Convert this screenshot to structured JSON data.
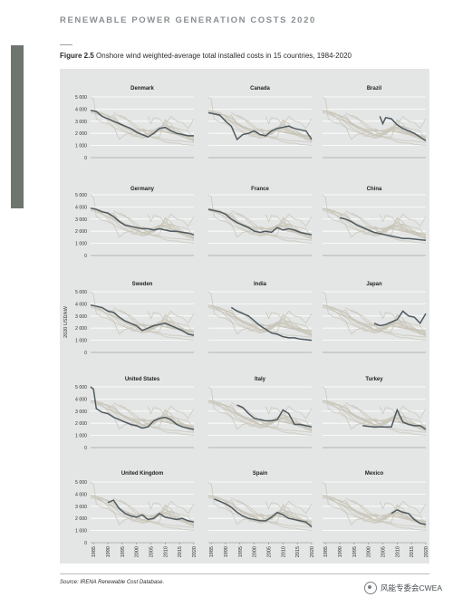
{
  "report": {
    "header": "RENEWABLE POWER GENERATION COSTS 2020"
  },
  "figure": {
    "number": "Figure 2.5",
    "title": "Onshore wind weighted-average total installed costs in 15 countries, 1984-2020"
  },
  "source": "Source: IRENA Renewable Cost Database.",
  "watermark": {
    "text": "风能专委会CWEA",
    "icon": "wechat-icon"
  },
  "colors": {
    "highlight": "#4f5a60",
    "background_lines": "#c9c6b9",
    "panel_bg": "#e4e6e6"
  },
  "chart_data": {
    "type": "line",
    "layout": "small-multiples",
    "ylabel": "2020 USD/kW",
    "ylim": [
      0,
      5000
    ],
    "yticks": [
      0,
      1000,
      2000,
      3000,
      4000,
      5000
    ],
    "ytick_labels": [
      "0",
      "1 000",
      "2 000",
      "3 000",
      "4 000",
      "5 000"
    ],
    "xlim": [
      1984,
      2020
    ],
    "xticks": [
      1985,
      1990,
      1995,
      2000,
      2005,
      2010,
      2015,
      2020
    ],
    "panels": [
      {
        "name": "Denmark",
        "points": [
          [
            1984,
            3900
          ],
          [
            1986,
            3800
          ],
          [
            1988,
            3400
          ],
          [
            1990,
            3200
          ],
          [
            1992,
            3000
          ],
          [
            1994,
            2800
          ],
          [
            1996,
            2600
          ],
          [
            1998,
            2400
          ],
          [
            2000,
            2100
          ],
          [
            2002,
            1900
          ],
          [
            2004,
            1700
          ],
          [
            2006,
            2000
          ],
          [
            2008,
            2400
          ],
          [
            2010,
            2500
          ],
          [
            2012,
            2200
          ],
          [
            2014,
            2000
          ],
          [
            2016,
            1900
          ],
          [
            2018,
            1800
          ],
          [
            2020,
            1800
          ]
        ]
      },
      {
        "name": "Canada",
        "points": [
          [
            1984,
            3700
          ],
          [
            1988,
            3500
          ],
          [
            1990,
            3000
          ],
          [
            1992,
            2600
          ],
          [
            1994,
            1500
          ],
          [
            1996,
            1900
          ],
          [
            1998,
            2000
          ],
          [
            2000,
            2200
          ],
          [
            2002,
            1900
          ],
          [
            2004,
            1800
          ],
          [
            2006,
            2200
          ],
          [
            2008,
            2400
          ],
          [
            2010,
            2500
          ],
          [
            2012,
            2600
          ],
          [
            2014,
            2400
          ],
          [
            2016,
            2300
          ],
          [
            2018,
            2200
          ],
          [
            2020,
            1500
          ]
        ]
      },
      {
        "name": "Brazil",
        "points": [
          [
            2004,
            3400
          ],
          [
            2005,
            2800
          ],
          [
            2006,
            3300
          ],
          [
            2008,
            3200
          ],
          [
            2010,
            2700
          ],
          [
            2012,
            2400
          ],
          [
            2014,
            2200
          ],
          [
            2016,
            2000
          ],
          [
            2018,
            1700
          ],
          [
            2020,
            1400
          ]
        ]
      },
      {
        "name": "Germany",
        "points": [
          [
            1984,
            3900
          ],
          [
            1986,
            3800
          ],
          [
            1988,
            3600
          ],
          [
            1990,
            3500
          ],
          [
            1992,
            3200
          ],
          [
            1994,
            2800
          ],
          [
            1996,
            2500
          ],
          [
            1998,
            2400
          ],
          [
            2000,
            2300
          ],
          [
            2002,
            2200
          ],
          [
            2004,
            2200
          ],
          [
            2006,
            2100
          ],
          [
            2008,
            2200
          ],
          [
            2010,
            2100
          ],
          [
            2012,
            2000
          ],
          [
            2014,
            2000
          ],
          [
            2016,
            1900
          ],
          [
            2018,
            1850
          ],
          [
            2020,
            1700
          ]
        ]
      },
      {
        "name": "France",
        "points": [
          [
            1984,
            3800
          ],
          [
            1988,
            3600
          ],
          [
            1990,
            3400
          ],
          [
            1992,
            3000
          ],
          [
            1994,
            2700
          ],
          [
            1996,
            2500
          ],
          [
            1998,
            2300
          ],
          [
            2000,
            2000
          ],
          [
            2002,
            1900
          ],
          [
            2004,
            2000
          ],
          [
            2006,
            1900
          ],
          [
            2008,
            2300
          ],
          [
            2010,
            2100
          ],
          [
            2012,
            2200
          ],
          [
            2014,
            2100
          ],
          [
            2016,
            1900
          ],
          [
            2018,
            1800
          ],
          [
            2020,
            1700
          ]
        ]
      },
      {
        "name": "China",
        "points": [
          [
            1990,
            3100
          ],
          [
            1992,
            3000
          ],
          [
            1994,
            2800
          ],
          [
            1996,
            2500
          ],
          [
            1998,
            2300
          ],
          [
            2000,
            2100
          ],
          [
            2002,
            1900
          ],
          [
            2004,
            1800
          ],
          [
            2006,
            1700
          ],
          [
            2008,
            1600
          ],
          [
            2010,
            1500
          ],
          [
            2012,
            1400
          ],
          [
            2014,
            1400
          ],
          [
            2016,
            1350
          ],
          [
            2018,
            1300
          ],
          [
            2020,
            1250
          ]
        ]
      },
      {
        "name": "Sweden",
        "points": [
          [
            1984,
            3900
          ],
          [
            1988,
            3700
          ],
          [
            1990,
            3400
          ],
          [
            1992,
            3300
          ],
          [
            1994,
            2900
          ],
          [
            1996,
            2600
          ],
          [
            1998,
            2400
          ],
          [
            2000,
            2200
          ],
          [
            2002,
            1800
          ],
          [
            2004,
            2000
          ],
          [
            2006,
            2200
          ],
          [
            2008,
            2300
          ],
          [
            2010,
            2400
          ],
          [
            2012,
            2200
          ],
          [
            2014,
            2000
          ],
          [
            2016,
            1800
          ],
          [
            2018,
            1500
          ],
          [
            2020,
            1400
          ]
        ]
      },
      {
        "name": "India",
        "points": [
          [
            1992,
            3700
          ],
          [
            1994,
            3400
          ],
          [
            1996,
            3200
          ],
          [
            1998,
            3000
          ],
          [
            2000,
            2600
          ],
          [
            2002,
            2200
          ],
          [
            2004,
            1900
          ],
          [
            2006,
            1600
          ],
          [
            2008,
            1500
          ],
          [
            2010,
            1300
          ],
          [
            2012,
            1200
          ],
          [
            2014,
            1200
          ],
          [
            2016,
            1100
          ],
          [
            2018,
            1050
          ],
          [
            2020,
            1000
          ]
        ]
      },
      {
        "name": "Japan",
        "points": [
          [
            2002,
            2400
          ],
          [
            2004,
            2200
          ],
          [
            2006,
            2300
          ],
          [
            2008,
            2500
          ],
          [
            2010,
            2700
          ],
          [
            2012,
            3400
          ],
          [
            2014,
            3000
          ],
          [
            2016,
            2900
          ],
          [
            2018,
            2400
          ],
          [
            2020,
            3200
          ]
        ]
      },
      {
        "name": "United States",
        "points": [
          [
            1984,
            5000
          ],
          [
            1985,
            4800
          ],
          [
            1986,
            3200
          ],
          [
            1988,
            2900
          ],
          [
            1990,
            2800
          ],
          [
            1992,
            2500
          ],
          [
            1994,
            2300
          ],
          [
            1996,
            2100
          ],
          [
            1998,
            1900
          ],
          [
            2000,
            1800
          ],
          [
            2002,
            1600
          ],
          [
            2004,
            1700
          ],
          [
            2006,
            2200
          ],
          [
            2008,
            2400
          ],
          [
            2010,
            2500
          ],
          [
            2012,
            2300
          ],
          [
            2014,
            1900
          ],
          [
            2016,
            1700
          ],
          [
            2018,
            1600
          ],
          [
            2020,
            1500
          ]
        ]
      },
      {
        "name": "Italy",
        "points": [
          [
            1994,
            3500
          ],
          [
            1996,
            3300
          ],
          [
            1998,
            2800
          ],
          [
            2000,
            2400
          ],
          [
            2002,
            2300
          ],
          [
            2004,
            2200
          ],
          [
            2006,
            2200
          ],
          [
            2008,
            2300
          ],
          [
            2010,
            3100
          ],
          [
            2012,
            2800
          ],
          [
            2014,
            1900
          ],
          [
            2016,
            1900
          ],
          [
            2018,
            1800
          ],
          [
            2020,
            1700
          ]
        ]
      },
      {
        "name": "Turkey",
        "points": [
          [
            1998,
            1800
          ],
          [
            2000,
            1750
          ],
          [
            2002,
            1700
          ],
          [
            2004,
            1700
          ],
          [
            2006,
            1700
          ],
          [
            2008,
            1700
          ],
          [
            2010,
            3100
          ],
          [
            2012,
            2100
          ],
          [
            2014,
            1900
          ],
          [
            2016,
            1800
          ],
          [
            2018,
            1800
          ],
          [
            2020,
            1500
          ]
        ]
      },
      {
        "name": "United Kingdom",
        "points": [
          [
            1990,
            3300
          ],
          [
            1992,
            3500
          ],
          [
            1994,
            2800
          ],
          [
            1996,
            2400
          ],
          [
            1998,
            2200
          ],
          [
            2000,
            2100
          ],
          [
            2002,
            2300
          ],
          [
            2004,
            1900
          ],
          [
            2006,
            2000
          ],
          [
            2008,
            2400
          ],
          [
            2010,
            2100
          ],
          [
            2012,
            2000
          ],
          [
            2014,
            1900
          ],
          [
            2016,
            2000
          ],
          [
            2018,
            1800
          ],
          [
            2020,
            1700
          ]
        ]
      },
      {
        "name": "Spain",
        "points": [
          [
            1986,
            3600
          ],
          [
            1988,
            3400
          ],
          [
            1990,
            3200
          ],
          [
            1992,
            2900
          ],
          [
            1994,
            2500
          ],
          [
            1996,
            2200
          ],
          [
            1998,
            2000
          ],
          [
            2000,
            1900
          ],
          [
            2002,
            1800
          ],
          [
            2004,
            1800
          ],
          [
            2006,
            2100
          ],
          [
            2008,
            2500
          ],
          [
            2010,
            2300
          ],
          [
            2012,
            2000
          ],
          [
            2014,
            1900
          ],
          [
            2016,
            1800
          ],
          [
            2018,
            1700
          ],
          [
            2020,
            1300
          ]
        ]
      },
      {
        "name": "Mexico",
        "points": [
          [
            2008,
            2400
          ],
          [
            2010,
            2700
          ],
          [
            2012,
            2500
          ],
          [
            2014,
            2400
          ],
          [
            2016,
            1900
          ],
          [
            2018,
            1600
          ],
          [
            2020,
            1500
          ]
        ]
      }
    ]
  }
}
